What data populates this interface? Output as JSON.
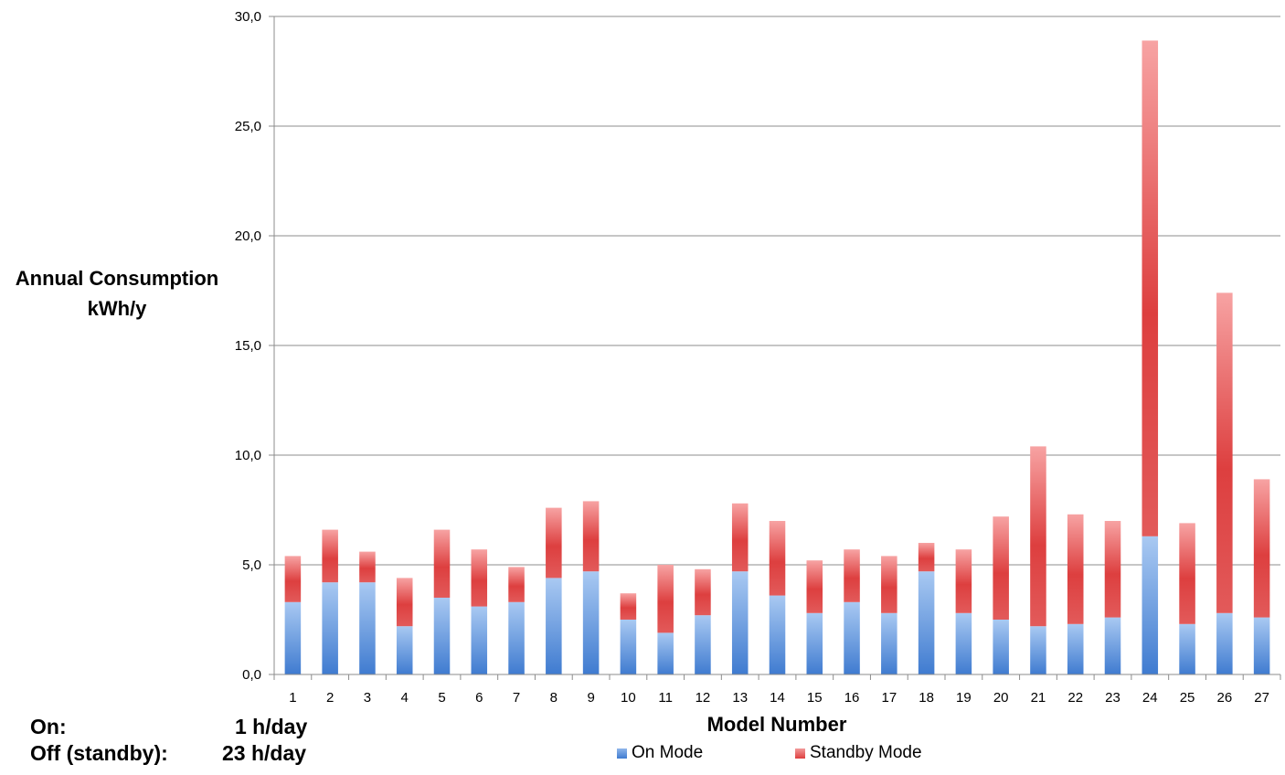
{
  "chart_data": {
    "type": "bar",
    "stacked": true,
    "categories": [
      "1",
      "2",
      "3",
      "4",
      "5",
      "6",
      "7",
      "8",
      "9",
      "10",
      "11",
      "12",
      "13",
      "14",
      "15",
      "16",
      "17",
      "18",
      "19",
      "20",
      "21",
      "22",
      "23",
      "24",
      "25",
      "26",
      "27"
    ],
    "series": [
      {
        "name": "On Mode",
        "values": [
          3.3,
          4.2,
          4.2,
          2.2,
          3.5,
          3.1,
          3.3,
          4.4,
          4.7,
          2.5,
          1.9,
          2.7,
          4.7,
          3.6,
          2.8,
          3.3,
          2.8,
          4.7,
          2.8,
          2.5,
          2.2,
          2.3,
          2.6,
          6.3,
          2.3,
          2.8,
          2.6
        ],
        "color": "#4a86d4"
      },
      {
        "name": "Standby Mode",
        "values": [
          2.1,
          2.4,
          1.4,
          2.2,
          3.1,
          2.6,
          1.6,
          3.2,
          3.2,
          1.2,
          3.1,
          2.1,
          3.1,
          3.4,
          2.4,
          2.4,
          2.6,
          1.3,
          2.9,
          4.7,
          8.2,
          5.0,
          4.4,
          22.6,
          4.6,
          14.6,
          6.3
        ],
        "color": "#e04848"
      }
    ],
    "yticks": [
      "0,0",
      "5,0",
      "10,0",
      "15,0",
      "20,0",
      "25,0",
      "30,0"
    ],
    "ylim": [
      0,
      30
    ],
    "ylabel_lines": [
      "Annual Consumption",
      "kWh/y"
    ],
    "xlabel": "Model Number",
    "grid": true,
    "legend": "bottom"
  },
  "notes": {
    "on_label": "On:",
    "on_value": "1 h/day",
    "off_label": "Off (standby):",
    "off_value": "23 h/day"
  }
}
